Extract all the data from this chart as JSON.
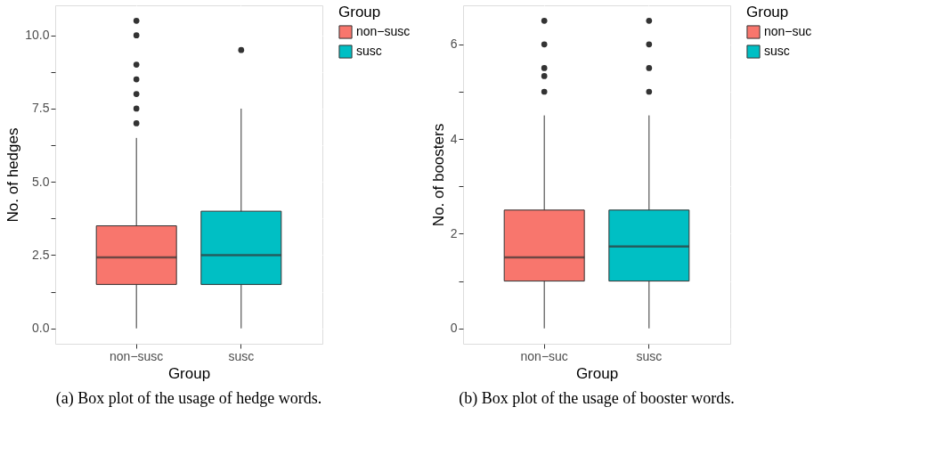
{
  "chart_data": [
    {
      "type": "box",
      "categories": [
        "non−susc",
        "susc"
      ],
      "xlabel": "Group",
      "ylabel": "No. of hedges",
      "legend_title": "Group",
      "legend": "right",
      "grid": true,
      "ylim": [
        -0.525,
        11.025
      ],
      "yticks": [
        {
          "value": 0,
          "label": "0.0"
        },
        {
          "value": 1.25,
          "label": null
        },
        {
          "value": 2.5,
          "label": "2.5"
        },
        {
          "value": 3.75,
          "label": null
        },
        {
          "value": 5,
          "label": "5.0"
        },
        {
          "value": 6.25,
          "label": null
        },
        {
          "value": 7.5,
          "label": "7.5"
        },
        {
          "value": 8.75,
          "label": null
        },
        {
          "value": 10,
          "label": "10.0"
        }
      ],
      "series": [
        {
          "name": "non−susc",
          "color": "#f8766d",
          "boxes": [
            {
              "low": 0,
              "q1": 1.5,
              "median": 2.42,
              "q3": 3.5,
              "high": 6.5,
              "outliers": [
                7,
                7.5,
                8,
                8.5,
                9,
                10,
                10.5
              ]
            },
            null
          ]
        },
        {
          "name": "susc",
          "color": "#00bfc4",
          "boxes": [
            null,
            {
              "low": 0,
              "q1": 1.5,
              "median": 2.5,
              "q3": 4,
              "high": 7.5,
              "outliers": [
                9.5
              ]
            }
          ]
        }
      ],
      "annotations": [
        "(a) Box plot of the usage of hedge words."
      ]
    },
    {
      "type": "box",
      "categories": [
        "non−suc",
        "susc"
      ],
      "xlabel": "Group",
      "ylabel": "No. of boosters",
      "legend_title": "Group",
      "legend": "right",
      "grid": true,
      "ylim": [
        -0.325,
        6.825
      ],
      "yticks": [
        0,
        {
          "value": 1,
          "label": null
        },
        2,
        {
          "value": 3,
          "label": null
        },
        4,
        {
          "value": 5,
          "label": null
        },
        6
      ],
      "series": [
        {
          "name": "non−suc",
          "color": "#f8766d",
          "boxes": [
            {
              "low": 0,
              "q1": 1,
              "median": 1.5,
              "q3": 2.5,
              "high": 4.5,
              "outliers": [
                5,
                5.33,
                5.5,
                6,
                6.5
              ]
            },
            null
          ]
        },
        {
          "name": "susc",
          "color": "#00bfc4",
          "boxes": [
            null,
            {
              "low": 0,
              "q1": 1,
              "median": 1.73,
              "q3": 2.5,
              "high": 4.5,
              "outliers": [
                5,
                5.5,
                6,
                6.5
              ]
            }
          ]
        }
      ],
      "annotations": [
        "(b) Box plot of the usage of booster words."
      ]
    }
  ]
}
